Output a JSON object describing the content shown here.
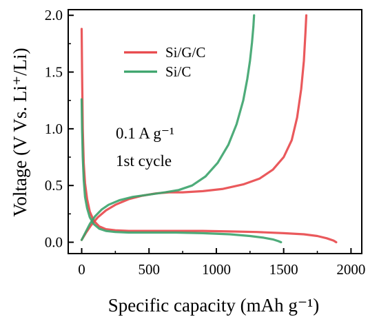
{
  "chart_data": {
    "type": "line",
    "xlabel": "Specific capacity (mAh g⁻¹)",
    "ylabel": "Voltage (V Vs. Li⁺/Li)",
    "xlim": [
      -100,
      2080
    ],
    "ylim": [
      -0.1,
      2.05
    ],
    "xticks": [
      0,
      500,
      1000,
      1500,
      2000
    ],
    "yticks": [
      0.0,
      0.5,
      1.0,
      1.5,
      2.0
    ],
    "ytick_labels": [
      "0.0",
      "0.5",
      "1.0",
      "1.5",
      "2.0"
    ],
    "grid": false,
    "legend_position": "top-left",
    "annotations": [
      "0.1 A g⁻¹",
      "1st cycle"
    ],
    "series": [
      {
        "name": "Si/G/C",
        "color": "#e8474a",
        "discharge": {
          "x": [
            0,
            3,
            8,
            15,
            25,
            40,
            60,
            90,
            130,
            180,
            250,
            350,
            500,
            700,
            900,
            1100,
            1300,
            1500,
            1650,
            1750,
            1820,
            1870,
            1890
          ],
          "y": [
            1.88,
            1.5,
            1.0,
            0.7,
            0.52,
            0.38,
            0.27,
            0.19,
            0.14,
            0.115,
            0.105,
            0.1,
            0.1,
            0.1,
            0.1,
            0.095,
            0.09,
            0.08,
            0.07,
            0.055,
            0.035,
            0.015,
            0.0
          ]
        },
        "charge": {
          "x": [
            0,
            30,
            70,
            120,
            180,
            250,
            350,
            450,
            550,
            650,
            750,
            900,
            1050,
            1200,
            1320,
            1420,
            1500,
            1560,
            1600,
            1630,
            1650,
            1662,
            1668
          ],
          "y": [
            0.02,
            0.08,
            0.15,
            0.22,
            0.28,
            0.33,
            0.38,
            0.41,
            0.43,
            0.44,
            0.44,
            0.45,
            0.47,
            0.51,
            0.56,
            0.64,
            0.75,
            0.9,
            1.1,
            1.35,
            1.6,
            1.85,
            2.0
          ]
        }
      },
      {
        "name": "Si/C",
        "color": "#3ba36b",
        "discharge": {
          "x": [
            0,
            3,
            8,
            15,
            25,
            40,
            60,
            90,
            130,
            180,
            250,
            350,
            500,
            700,
            900,
            1100,
            1250,
            1350,
            1420,
            1460,
            1480
          ],
          "y": [
            1.26,
            1.0,
            0.75,
            0.55,
            0.4,
            0.3,
            0.22,
            0.16,
            0.12,
            0.1,
            0.09,
            0.085,
            0.085,
            0.085,
            0.08,
            0.07,
            0.055,
            0.04,
            0.025,
            0.01,
            0.0
          ]
        },
        "charge": {
          "x": [
            0,
            30,
            60,
            100,
            150,
            200,
            280,
            380,
            500,
            620,
            720,
            820,
            920,
            1010,
            1090,
            1150,
            1200,
            1230,
            1250,
            1265,
            1275,
            1280
          ],
          "y": [
            0.02,
            0.09,
            0.16,
            0.23,
            0.29,
            0.33,
            0.37,
            0.4,
            0.42,
            0.44,
            0.46,
            0.5,
            0.58,
            0.7,
            0.86,
            1.04,
            1.25,
            1.44,
            1.6,
            1.76,
            1.9,
            2.0
          ]
        }
      }
    ]
  }
}
